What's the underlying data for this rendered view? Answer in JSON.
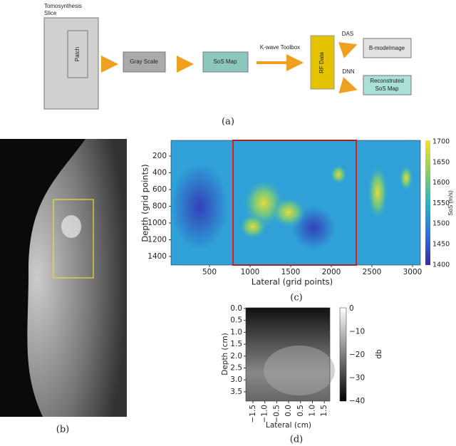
{
  "panel_a": {
    "caption": "(a)",
    "slice_lines": [
      "Tomosynthesis",
      "Slice"
    ],
    "patch": "Patch",
    "gray_scale": "Gray Scale",
    "sos_map": "SoS Map",
    "toolbox": "K-wave Toolbox",
    "rf_data": "RF Data",
    "das": "DAS",
    "bmode": "B-modeImage",
    "dnn": "DNN",
    "recon_lines": [
      "Reconstruted",
      "SoS Map"
    ]
  },
  "panel_b": {
    "caption": "(b)"
  },
  "panel_c": {
    "caption": "(c)",
    "xlabel": "Lateral (grid points)",
    "ylabel": "Depth (grid points)",
    "xticks": [
      500,
      1000,
      1500,
      2000,
      2500,
      3000
    ],
    "yticks": [
      200,
      400,
      600,
      800,
      1000,
      1200,
      1400
    ],
    "colorbar_label": "SoS (m/s)",
    "colorbar_ticks": [
      1700,
      1650,
      1600,
      1550,
      1500,
      1450,
      1400
    ]
  },
  "panel_d": {
    "caption": "(d)",
    "xlabel": "Lateral (cm)",
    "ylabel": "Depth (cm)",
    "xticks": [
      "−1.5",
      "−1.0",
      "−0.5",
      "0.0",
      "0.5",
      "1.0",
      "1.5"
    ],
    "yticks": [
      "0.0",
      "0.5",
      "1.0",
      "1.5",
      "2.0",
      "2.5",
      "3.0",
      "3.5"
    ],
    "colorbar_label": "db",
    "colorbar_ticks": [
      "0",
      "−10",
      "−20",
      "−30",
      "−40"
    ]
  }
}
